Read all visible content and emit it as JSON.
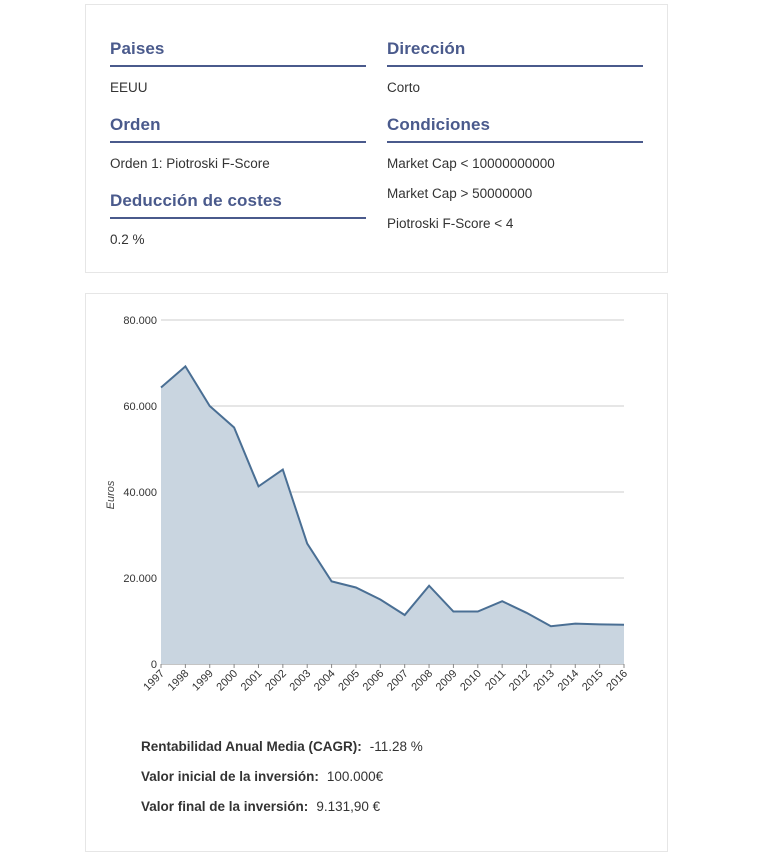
{
  "filters": {
    "paises": {
      "title": "Paises",
      "value": "EEUU"
    },
    "direccion": {
      "title": "Dirección",
      "value": "Corto"
    },
    "orden": {
      "title": "Orden",
      "value": "Orden 1: Piotroski F-Score"
    },
    "condiciones": {
      "title": "Condiciones",
      "values": [
        "Market Cap < 10000000000",
        "Market Cap > 50000000",
        "Piotroski F-Score < 4"
      ]
    },
    "costes": {
      "title": "Deducción de costes",
      "value": "0.2 %"
    }
  },
  "chart_data": {
    "type": "area",
    "x": [
      "1997",
      "1998",
      "1999",
      "2000",
      "2001",
      "2002",
      "2003",
      "2004",
      "2005",
      "2006",
      "2007",
      "2008",
      "2009",
      "2010",
      "2011",
      "2012",
      "2013",
      "2014",
      "2015",
      "2016"
    ],
    "values": [
      64300,
      69200,
      60000,
      55000,
      41300,
      45200,
      28000,
      19200,
      17800,
      15000,
      11400,
      18200,
      12200,
      12200,
      14600,
      11900,
      8800,
      9400,
      9200,
      9132
    ],
    "ylabel": "Euros",
    "ylim": [
      0,
      80000
    ],
    "yticks": [
      0,
      20000,
      40000,
      60000,
      80000
    ],
    "ytick_labels": [
      "0",
      "20.000",
      "40.000",
      "60.000",
      "80.000"
    ],
    "grid": true,
    "line_color": "#4a6f94",
    "fill_color": "#c9d5e0"
  },
  "stats": {
    "cagr": {
      "label": "Rentabilidad Anual Media (CAGR):",
      "value": "-11.28 %"
    },
    "inicial": {
      "label": "Valor inicial de la inversión:",
      "value": "100.000€"
    },
    "final": {
      "label": "Valor final de la inversión:",
      "value": "9.131,90 €"
    }
  }
}
